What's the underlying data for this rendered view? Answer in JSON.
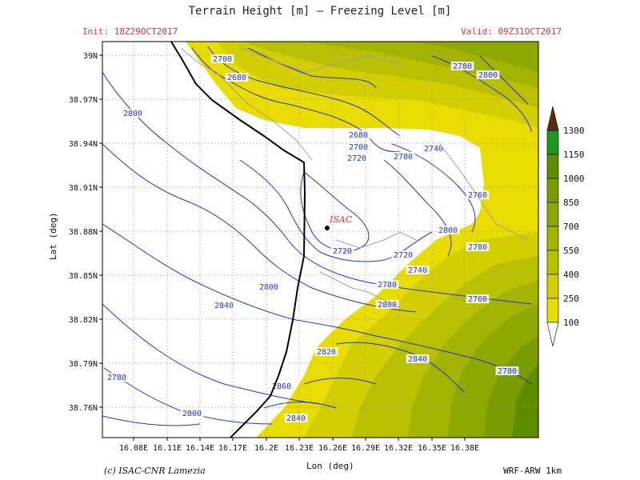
{
  "header": {
    "title": "Terrain Height [m] — Freezing Level [m]",
    "init": "Init: 18Z29OCT2017",
    "valid": "Valid: 09Z31OCT2017"
  },
  "footer": {
    "credit": "(c) ISAC-CNR Lamezia",
    "model": "WRF-ARW 1km"
  },
  "axes": {
    "xlabel": "Lon (deg)",
    "ylabel": "Lat (deg)",
    "xticks": [
      "16.08E",
      "16.11E",
      "16.14E",
      "16.17E",
      "16.2E",
      "16.23E",
      "16.26E",
      "16.29E",
      "16.32E",
      "16.35E",
      "16.38E"
    ],
    "yticks": [
      "39N",
      "38.97N",
      "38.94N",
      "38.91N",
      "38.88N",
      "38.85N",
      "38.82N",
      "38.79N",
      "38.76N"
    ]
  },
  "colorbar": {
    "levels": [
      "100",
      "250",
      "400",
      "550",
      "700",
      "850",
      "1000",
      "1150",
      "1300"
    ],
    "colors": [
      "#e8dc00",
      "#d2ce00",
      "#b8c000",
      "#a2b400",
      "#8ea800",
      "#7a9c00",
      "#5e8e00",
      "#1f9620"
    ],
    "over_color": "#5a2d0c"
  },
  "station": {
    "label": "ISAC"
  },
  "contour_labels": [
    "2700",
    "2680",
    "2780",
    "2800",
    "2800",
    "2680",
    "2700",
    "2720",
    "2740",
    "2780",
    "2760",
    "2800",
    "2780",
    "2720",
    "2720",
    "2740",
    "2780",
    "2800",
    "2800",
    "2760",
    "2840",
    "2820",
    "2840",
    "2780",
    "2780",
    "2860",
    "2800",
    "2840"
  ],
  "colors": {
    "contour": "#2233dd",
    "coast": "#000000",
    "label_text": "#2233dd"
  }
}
